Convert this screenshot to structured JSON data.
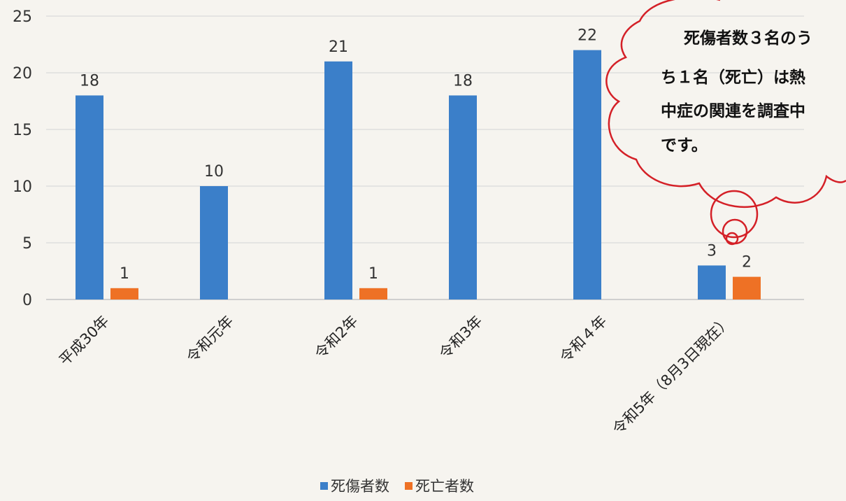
{
  "chart_data": {
    "type": "bar",
    "categories": [
      "平成30年",
      "令和元年",
      "令和2年",
      "令和3年",
      "令和４年",
      "令和5年（8月3日現在）"
    ],
    "series": [
      {
        "name": "死傷者数",
        "values": [
          18,
          10,
          21,
          18,
          22,
          3
        ],
        "color": "#3b7fc9"
      },
      {
        "name": "死亡者数",
        "values": [
          1,
          null,
          1,
          null,
          null,
          2
        ],
        "color": "#ee7125"
      }
    ],
    "y_ticks": [
      0,
      5,
      10,
      15,
      20,
      25
    ],
    "ylim": [
      0,
      25
    ],
    "grid": true,
    "legend_position": "bottom",
    "data_labels": true
  },
  "annotation": {
    "shape": "thought-cloud",
    "color": "#d42027",
    "lines": [
      "死傷者数３名のう",
      "ち１名（死亡）は熱",
      "中症の関連を調査中",
      "です。"
    ]
  }
}
